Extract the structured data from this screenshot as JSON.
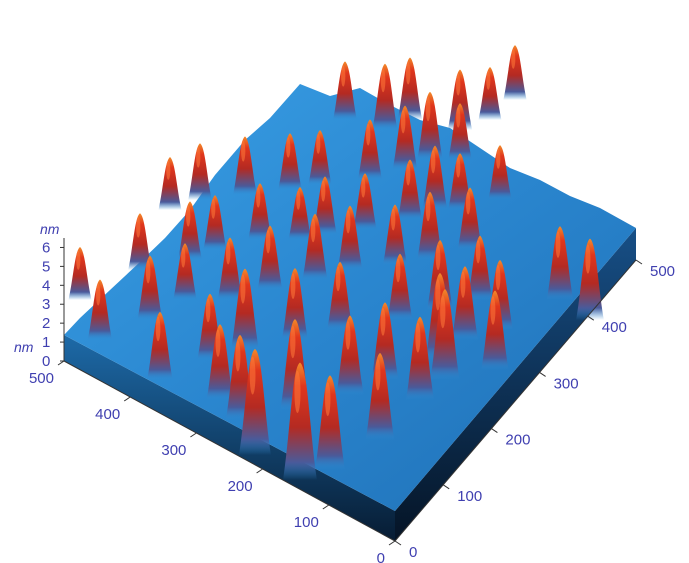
{
  "chart_data": {
    "type": "surface3d",
    "z_unit": "nm",
    "z_unit_lower": "nm",
    "z_ticks": [
      "0",
      "1",
      "2",
      "3",
      "4",
      "5",
      "6"
    ],
    "zlim": [
      0,
      6.5
    ],
    "x_ticks": [
      "0",
      "100",
      "200",
      "300",
      "400",
      "500"
    ],
    "y_ticks": [
      "0",
      "100",
      "200",
      "300",
      "400",
      "500"
    ],
    "xlim": [
      0,
      500
    ],
    "ylim": [
      0,
      500
    ],
    "grid": false,
    "colormap": {
      "base": "#2f8fd6",
      "mid": "#d42a18",
      "peak": "#f0a020",
      "shadow": "#0a2a4a"
    },
    "peaks": [
      {
        "x": 300,
        "y": 480,
        "z": 6.2
      },
      {
        "x": 255,
        "y": 455,
        "z": 5.6
      },
      {
        "x": 330,
        "y": 470,
        "z": 5.0
      },
      {
        "x": 380,
        "y": 440,
        "z": 4.6
      },
      {
        "x": 420,
        "y": 400,
        "z": 4.4
      },
      {
        "x": 445,
        "y": 380,
        "z": 4.8
      },
      {
        "x": 495,
        "y": 370,
        "z": 4.2
      },
      {
        "x": 590,
        "y": 320,
        "z": 4.3
      },
      {
        "x": 240,
        "y": 420,
        "z": 4.5
      },
      {
        "x": 220,
        "y": 400,
        "z": 4.0
      },
      {
        "x": 295,
        "y": 410,
        "z": 4.8
      },
      {
        "x": 350,
        "y": 395,
        "z": 4.2
      },
      {
        "x": 385,
        "y": 380,
        "z": 4.1
      },
      {
        "x": 440,
        "y": 360,
        "z": 4.6
      },
      {
        "x": 465,
        "y": 340,
        "z": 3.9
      },
      {
        "x": 500,
        "y": 330,
        "z": 3.7
      },
      {
        "x": 560,
        "y": 300,
        "z": 3.9
      },
      {
        "x": 160,
        "y": 380,
        "z": 3.6
      },
      {
        "x": 210,
        "y": 360,
        "z": 3.5
      },
      {
        "x": 245,
        "y": 350,
        "z": 4.3
      },
      {
        "x": 295,
        "y": 340,
        "z": 3.8
      },
      {
        "x": 340,
        "y": 330,
        "z": 3.6
      },
      {
        "x": 400,
        "y": 320,
        "z": 3.5
      },
      {
        "x": 440,
        "y": 310,
        "z": 3.7
      },
      {
        "x": 480,
        "y": 300,
        "z": 3.4
      },
      {
        "x": 100,
        "y": 340,
        "z": 3.2
      },
      {
        "x": 150,
        "y": 320,
        "z": 3.4
      },
      {
        "x": 185,
        "y": 300,
        "z": 3.0
      },
      {
        "x": 230,
        "y": 300,
        "z": 3.3
      },
      {
        "x": 270,
        "y": 290,
        "z": 3.4
      },
      {
        "x": 315,
        "y": 280,
        "z": 3.5
      },
      {
        "x": 350,
        "y": 270,
        "z": 3.4
      },
      {
        "x": 395,
        "y": 265,
        "z": 3.2
      },
      {
        "x": 430,
        "y": 260,
        "z": 3.6
      },
      {
        "x": 470,
        "y": 250,
        "z": 3.3
      },
      {
        "x": 80,
        "y": 300,
        "z": 2.8
      },
      {
        "x": 140,
        "y": 270,
        "z": 3.0
      },
      {
        "x": 190,
        "y": 260,
        "z": 3.1
      },
      {
        "x": 215,
        "y": 250,
        "z": 2.9
      },
      {
        "x": 260,
        "y": 240,
        "z": 3.0
      },
      {
        "x": 300,
        "y": 240,
        "z": 2.8
      },
      {
        "x": 325,
        "y": 235,
        "z": 3.1
      },
      {
        "x": 365,
        "y": 230,
        "z": 3.0
      },
      {
        "x": 410,
        "y": 220,
        "z": 3.2
      },
      {
        "x": 435,
        "y": 210,
        "z": 3.4
      },
      {
        "x": 460,
        "y": 210,
        "z": 3.0
      },
      {
        "x": 500,
        "y": 200,
        "z": 2.9
      },
      {
        "x": 170,
        "y": 210,
        "z": 2.8
      },
      {
        "x": 200,
        "y": 200,
        "z": 3.0
      },
      {
        "x": 245,
        "y": 195,
        "z": 3.1
      },
      {
        "x": 290,
        "y": 190,
        "z": 3.0
      },
      {
        "x": 320,
        "y": 185,
        "z": 2.9
      },
      {
        "x": 370,
        "y": 180,
        "z": 3.2
      },
      {
        "x": 405,
        "y": 170,
        "z": 3.4
      },
      {
        "x": 430,
        "y": 160,
        "z": 3.6
      },
      {
        "x": 460,
        "y": 160,
        "z": 3.0
      },
      {
        "x": 345,
        "y": 120,
        "z": 3.1
      },
      {
        "x": 385,
        "y": 130,
        "z": 3.5
      },
      {
        "x": 410,
        "y": 120,
        "z": 3.3
      },
      {
        "x": 460,
        "y": 130,
        "z": 3.2
      },
      {
        "x": 490,
        "y": 120,
        "z": 2.8
      },
      {
        "x": 515,
        "y": 100,
        "z": 2.9
      }
    ]
  }
}
